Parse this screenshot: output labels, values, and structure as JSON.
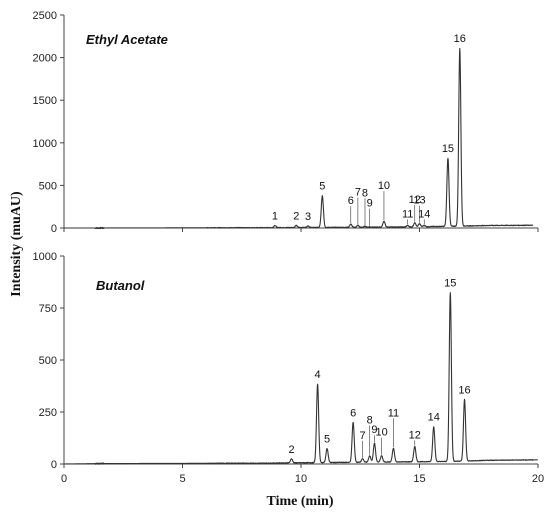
{
  "chart_data": {
    "type": "line",
    "xlabel": "Time (min)",
    "ylabel": "Intensity (muAU)",
    "xlim": [
      0,
      20
    ],
    "xticks": [
      0,
      5,
      10,
      15,
      20
    ],
    "grid": false,
    "panels": [
      {
        "title": "Ethyl Acetate",
        "ylim": [
          0,
          2500
        ],
        "yticks": [
          0,
          500,
          1000,
          1500,
          2000,
          2500
        ],
        "baseline": [
          [
            0,
            0
          ],
          [
            1.5,
            0
          ],
          [
            5,
            2
          ],
          [
            8.5,
            4
          ],
          [
            9.8,
            6
          ],
          [
            12,
            8
          ],
          [
            13,
            10
          ],
          [
            14.5,
            12
          ],
          [
            17.2,
            25
          ],
          [
            18,
            30
          ],
          [
            19.8,
            32
          ]
        ],
        "peaks": [
          {
            "label": "1",
            "x": 8.9,
            "y": 30
          },
          {
            "label": "2",
            "x": 9.8,
            "y": 30
          },
          {
            "label": "3",
            "x": 10.3,
            "y": 25
          },
          {
            "label": "5",
            "x": 10.9,
            "y": 380
          },
          {
            "label": "6",
            "x": 12.1,
            "y": 45
          },
          {
            "label": "7",
            "x": 12.4,
            "y": 30
          },
          {
            "label": "8",
            "x": 12.7,
            "y": 20
          },
          {
            "label": "9",
            "x": 12.9,
            "y": 15
          },
          {
            "label": "10",
            "x": 13.5,
            "y": 80
          },
          {
            "label": "11",
            "x": 14.5,
            "y": 30
          },
          {
            "label": "12",
            "x": 14.8,
            "y": 60
          },
          {
            "label": "13",
            "x": 15.0,
            "y": 50
          },
          {
            "label": "14",
            "x": 15.2,
            "y": 30
          },
          {
            "label": "15",
            "x": 16.2,
            "y": 820
          },
          {
            "label": "16",
            "x": 16.7,
            "y": 2110
          }
        ]
      },
      {
        "title": "Butanol",
        "ylim": [
          0,
          1000
        ],
        "yticks": [
          0,
          250,
          500,
          750,
          1000
        ],
        "baseline": [
          [
            0,
            0
          ],
          [
            1.5,
            2
          ],
          [
            5,
            3
          ],
          [
            8.5,
            4
          ],
          [
            10,
            6
          ],
          [
            12,
            8
          ],
          [
            14,
            10
          ],
          [
            16,
            12
          ],
          [
            17.2,
            15
          ],
          [
            18,
            18
          ],
          [
            20,
            20
          ]
        ],
        "peaks": [
          {
            "label": "2",
            "x": 9.6,
            "y": 25
          },
          {
            "label": "4",
            "x": 10.7,
            "y": 385
          },
          {
            "label": "5",
            "x": 11.1,
            "y": 75
          },
          {
            "label": "6",
            "x": 12.2,
            "y": 200
          },
          {
            "label": "7",
            "x": 12.6,
            "y": 25
          },
          {
            "label": "8",
            "x": 12.9,
            "y": 40
          },
          {
            "label": "9",
            "x": 13.1,
            "y": 100
          },
          {
            "label": "10",
            "x": 13.4,
            "y": 40
          },
          {
            "label": "11",
            "x": 13.9,
            "y": 75
          },
          {
            "label": "12",
            "x": 14.8,
            "y": 85
          },
          {
            "label": "14",
            "x": 15.6,
            "y": 180
          },
          {
            "label": "15",
            "x": 16.3,
            "y": 825
          },
          {
            "label": "16",
            "x": 16.9,
            "y": 310
          }
        ]
      }
    ]
  }
}
